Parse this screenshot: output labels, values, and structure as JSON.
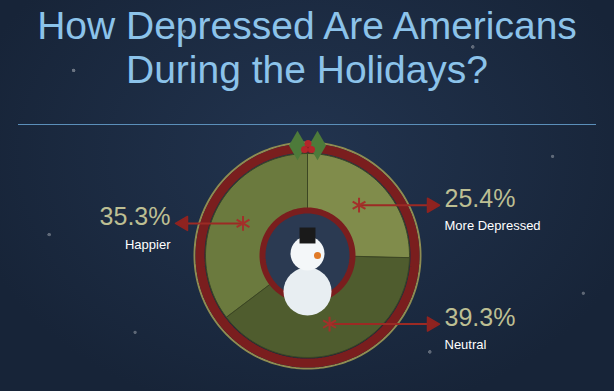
{
  "chart_data": {
    "type": "pie",
    "title": "How Depressed Are Americans During the Holidays?",
    "categories": [
      "More Depressed",
      "Neutral",
      "Happier"
    ],
    "values": [
      25.4,
      39.3,
      35.3
    ],
    "value_labels": [
      "25.4%",
      "39.3%",
      "35.3%"
    ],
    "colors": [
      "#808c4b",
      "#4f5c2e",
      "#6b7a3e"
    ],
    "data_labels": true
  }
}
